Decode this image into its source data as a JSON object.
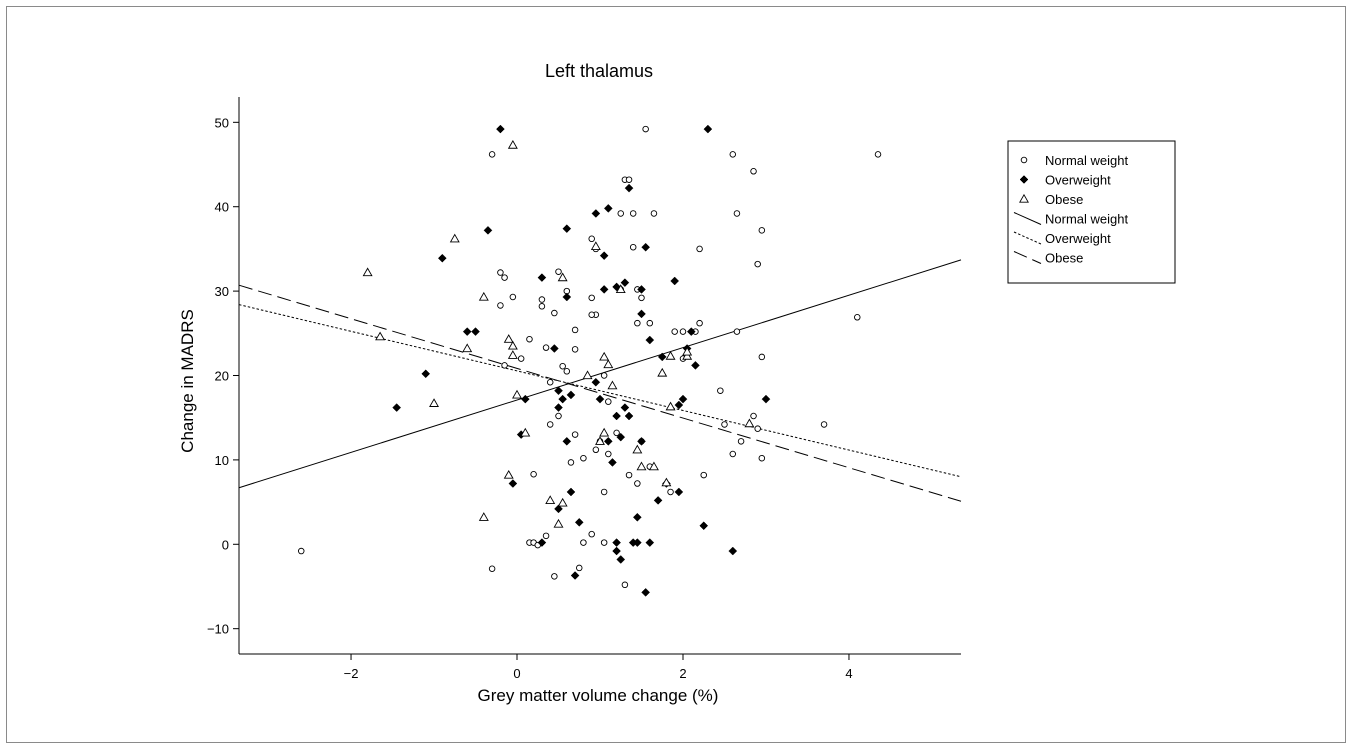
{
  "chart_data": {
    "type": "scatter",
    "title": "Left thalamus",
    "xlabel": "Grey matter volume change (%)",
    "ylabel": "Change in MADRS",
    "xlim": [
      -3.35,
      5.35
    ],
    "ylim": [
      -13,
      53
    ],
    "xticks": [
      -2,
      0,
      2,
      4
    ],
    "xtick_labels": [
      "−2",
      "0",
      "2",
      "4"
    ],
    "yticks": [
      -10,
      0,
      10,
      20,
      30,
      40,
      50
    ],
    "ytick_labels": [
      "−10",
      "0",
      "10",
      "20",
      "30",
      "40",
      "50"
    ],
    "grid": false,
    "legend_position": "right",
    "legend": [
      {
        "label": "Normal weight",
        "kind": "marker",
        "marker": "circle"
      },
      {
        "label": "Overweight",
        "kind": "marker",
        "marker": "diamond"
      },
      {
        "label": "Obese",
        "kind": "marker",
        "marker": "triangle"
      },
      {
        "label": "Normal weight",
        "kind": "line",
        "dash": "solid"
      },
      {
        "label": "Overweight",
        "kind": "line",
        "dash": "dotted"
      },
      {
        "label": "Obese",
        "kind": "line",
        "dash": "dashed"
      }
    ],
    "series": [
      {
        "name": "Normal weight",
        "marker": "circle",
        "points": [
          [
            -2.6,
            -0.8
          ],
          [
            -0.3,
            46.2
          ],
          [
            -0.2,
            32.2
          ],
          [
            -0.2,
            28.3
          ],
          [
            -0.15,
            31.6
          ],
          [
            -0.15,
            21.2
          ],
          [
            -0.05,
            29.3
          ],
          [
            0.15,
            24.3
          ],
          [
            0.05,
            22.0
          ],
          [
            0.3,
            28.2
          ],
          [
            0.35,
            23.3
          ],
          [
            0.3,
            29.0
          ],
          [
            0.5,
            32.3
          ],
          [
            0.45,
            27.4
          ],
          [
            0.6,
            30.0
          ],
          [
            0.7,
            25.4
          ],
          [
            0.7,
            23.1
          ],
          [
            0.4,
            19.2
          ],
          [
            0.55,
            21.1
          ],
          [
            0.5,
            15.2
          ],
          [
            0.4,
            14.2
          ],
          [
            0.7,
            13.0
          ],
          [
            0.65,
            9.7
          ],
          [
            0.8,
            10.2
          ],
          [
            0.2,
            8.3
          ],
          [
            0.35,
            1.0
          ],
          [
            0.15,
            0.2
          ],
          [
            0.2,
            0.2
          ],
          [
            0.8,
            0.2
          ],
          [
            0.75,
            -2.8
          ],
          [
            0.45,
            -3.8
          ],
          [
            -0.3,
            -2.9
          ],
          [
            0.25,
            -0.1
          ],
          [
            0.9,
            1.2
          ],
          [
            1.05,
            0.2
          ],
          [
            1.3,
            -4.8
          ],
          [
            0.95,
            11.2
          ],
          [
            1.0,
            12.2
          ],
          [
            1.05,
            6.2
          ],
          [
            1.1,
            10.7
          ],
          [
            1.35,
            8.2
          ],
          [
            1.5,
            12.2
          ],
          [
            1.6,
            9.2
          ],
          [
            1.45,
            7.2
          ],
          [
            1.85,
            6.2
          ],
          [
            2.25,
            8.2
          ],
          [
            2.6,
            10.7
          ],
          [
            2.7,
            12.2
          ],
          [
            2.9,
            13.7
          ],
          [
            2.95,
            10.2
          ],
          [
            3.7,
            14.2
          ],
          [
            2.85,
            15.2
          ],
          [
            2.5,
            14.2
          ],
          [
            2.45,
            18.2
          ],
          [
            2.95,
            22.2
          ],
          [
            2.65,
            25.2
          ],
          [
            2.15,
            25.2
          ],
          [
            2.2,
            26.2
          ],
          [
            2.0,
            25.2
          ],
          [
            1.9,
            25.2
          ],
          [
            1.6,
            26.2
          ],
          [
            1.45,
            26.2
          ],
          [
            1.5,
            29.2
          ],
          [
            1.45,
            30.2
          ],
          [
            1.25,
            30.2
          ],
          [
            0.95,
            27.2
          ],
          [
            0.9,
            27.2
          ],
          [
            0.9,
            29.2
          ],
          [
            0.9,
            36.2
          ],
          [
            0.95,
            35.0
          ],
          [
            1.25,
            39.2
          ],
          [
            1.4,
            39.2
          ],
          [
            1.3,
            43.2
          ],
          [
            1.35,
            43.2
          ],
          [
            1.65,
            39.2
          ],
          [
            1.55,
            49.2
          ],
          [
            2.2,
            35.0
          ],
          [
            2.6,
            46.2
          ],
          [
            2.65,
            39.2
          ],
          [
            2.85,
            44.2
          ],
          [
            2.9,
            33.2
          ],
          [
            2.95,
            37.2
          ],
          [
            4.35,
            46.2
          ],
          [
            4.1,
            26.9
          ],
          [
            1.1,
            16.9
          ],
          [
            1.05,
            20.0
          ],
          [
            1.2,
            13.2
          ],
          [
            0.6,
            20.5
          ],
          [
            1.4,
            35.2
          ],
          [
            2.0,
            22.0
          ]
        ]
      },
      {
        "name": "Overweight",
        "marker": "diamond",
        "points": [
          [
            -1.45,
            16.2
          ],
          [
            -1.1,
            20.2
          ],
          [
            -0.9,
            33.9
          ],
          [
            -0.6,
            25.2
          ],
          [
            -0.5,
            25.2
          ],
          [
            -0.35,
            37.2
          ],
          [
            -0.2,
            49.2
          ],
          [
            0.1,
            17.2
          ],
          [
            0.05,
            13.0
          ],
          [
            0.3,
            31.6
          ],
          [
            0.45,
            23.2
          ],
          [
            0.5,
            16.2
          ],
          [
            0.55,
            17.2
          ],
          [
            0.5,
            18.2
          ],
          [
            0.65,
            17.7
          ],
          [
            0.6,
            29.3
          ],
          [
            0.6,
            37.4
          ],
          [
            0.6,
            12.2
          ],
          [
            0.5,
            4.2
          ],
          [
            0.65,
            6.2
          ],
          [
            0.75,
            2.6
          ],
          [
            -0.05,
            7.2
          ],
          [
            0.3,
            0.2
          ],
          [
            0.7,
            -3.7
          ],
          [
            0.95,
            39.2
          ],
          [
            1.05,
            34.2
          ],
          [
            1.1,
            39.8
          ],
          [
            1.05,
            30.2
          ],
          [
            1.2,
            30.5
          ],
          [
            1.3,
            31.0
          ],
          [
            1.35,
            42.2
          ],
          [
            1.5,
            30.2
          ],
          [
            1.55,
            35.2
          ],
          [
            1.5,
            27.3
          ],
          [
            1.6,
            24.2
          ],
          [
            0.95,
            19.2
          ],
          [
            1.0,
            17.2
          ],
          [
            1.1,
            12.2
          ],
          [
            1.2,
            15.2
          ],
          [
            1.25,
            12.7
          ],
          [
            1.3,
            16.2
          ],
          [
            1.35,
            15.2
          ],
          [
            1.5,
            12.2
          ],
          [
            1.15,
            9.7
          ],
          [
            1.45,
            3.2
          ],
          [
            1.2,
            0.2
          ],
          [
            1.2,
            -0.8
          ],
          [
            1.25,
            -1.8
          ],
          [
            1.4,
            0.2
          ],
          [
            1.45,
            0.2
          ],
          [
            1.6,
            0.2
          ],
          [
            1.55,
            -5.7
          ],
          [
            1.7,
            5.2
          ],
          [
            1.8,
            7.2
          ],
          [
            1.75,
            22.2
          ],
          [
            1.95,
            16.5
          ],
          [
            2.0,
            17.2
          ],
          [
            2.05,
            23.2
          ],
          [
            1.9,
            31.2
          ],
          [
            2.1,
            25.2
          ],
          [
            2.15,
            21.2
          ],
          [
            2.3,
            49.2
          ],
          [
            2.25,
            2.2
          ],
          [
            1.95,
            6.2
          ],
          [
            2.6,
            -0.8
          ],
          [
            3.0,
            17.2
          ]
        ]
      },
      {
        "name": "Obese",
        "marker": "triangle",
        "points": [
          [
            -1.8,
            32.2
          ],
          [
            -1.65,
            24.6
          ],
          [
            -1.0,
            16.7
          ],
          [
            -0.75,
            36.2
          ],
          [
            -0.6,
            23.2
          ],
          [
            -0.4,
            29.3
          ],
          [
            -0.1,
            24.3
          ],
          [
            -0.05,
            22.4
          ],
          [
            -0.05,
            23.5
          ],
          [
            -0.05,
            47.3
          ],
          [
            0.0,
            17.7
          ],
          [
            0.1,
            13.2
          ],
          [
            -0.1,
            8.2
          ],
          [
            0.4,
            5.2
          ],
          [
            0.5,
            2.4
          ],
          [
            0.55,
            4.9
          ],
          [
            0.55,
            31.6
          ],
          [
            0.95,
            35.3
          ],
          [
            1.0,
            12.2
          ],
          [
            1.05,
            13.2
          ],
          [
            1.05,
            22.2
          ],
          [
            1.1,
            21.3
          ],
          [
            1.15,
            18.8
          ],
          [
            1.25,
            30.2
          ],
          [
            1.45,
            11.2
          ],
          [
            1.5,
            9.2
          ],
          [
            1.65,
            9.2
          ],
          [
            1.75,
            20.3
          ],
          [
            1.85,
            16.3
          ],
          [
            1.8,
            7.3
          ],
          [
            1.85,
            22.3
          ],
          [
            2.05,
            22.3
          ],
          [
            2.05,
            22.8
          ],
          [
            2.8,
            14.3
          ],
          [
            -0.4,
            3.2
          ],
          [
            0.85,
            20.0
          ]
        ]
      }
    ],
    "fit_lines": [
      {
        "name": "Normal weight",
        "dash": "solid",
        "x": [
          -3.35,
          5.35
        ],
        "y": [
          6.7,
          33.7
        ]
      },
      {
        "name": "Overweight",
        "dash": "dotted",
        "x": [
          -3.35,
          5.35
        ],
        "y": [
          28.4,
          8.0
        ]
      },
      {
        "name": "Obese",
        "dash": "dashed",
        "x": [
          -3.35,
          5.35
        ],
        "y": [
          30.7,
          5.1
        ]
      }
    ]
  }
}
